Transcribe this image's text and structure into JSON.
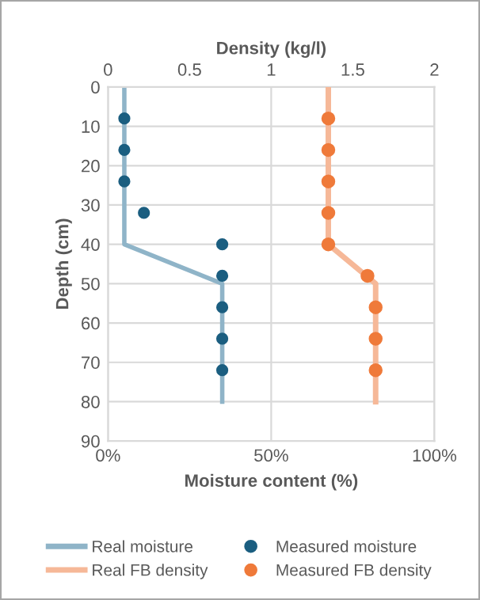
{
  "chart_data": {
    "type": "line",
    "xlabel": "Moisture content (%)",
    "x2label": "Density (kg/l)",
    "ylabel": "Depth (cm)",
    "xlim": [
      0,
      100
    ],
    "xticks": [
      {
        "value": 0,
        "label": "0%"
      },
      {
        "value": 50,
        "label": "50%"
      },
      {
        "value": 100,
        "label": "100%"
      }
    ],
    "x2lim": [
      0,
      2
    ],
    "x2ticks": [
      0,
      0.5,
      1,
      1.5,
      2
    ],
    "ylim": [
      90,
      0
    ],
    "yticks": [
      0,
      10,
      20,
      30,
      40,
      50,
      60,
      70,
      80,
      90
    ],
    "grid": true,
    "legend": "bottom",
    "series": [
      {
        "name": "Real moisture",
        "color": "#8fb4c8",
        "x": [
          5,
          5,
          35,
          35
        ],
        "values": [
          0,
          40,
          50,
          80
        ]
      },
      {
        "name": "Measured moisture",
        "type": "scatter",
        "marker": "circle",
        "color": "#1b5e80",
        "x": [
          5,
          5,
          5,
          11,
          35,
          35,
          35,
          35,
          35
        ],
        "values": [
          8,
          16,
          24,
          32,
          40,
          48,
          56,
          64,
          72
        ]
      },
      {
        "name": "Real FB density",
        "axis": "x2",
        "color": "#f6b898",
        "x": [
          1.35,
          1.35,
          1.64,
          1.64
        ],
        "values": [
          0,
          40,
          50,
          80
        ]
      },
      {
        "name": "Measured FB density",
        "type": "scatter",
        "axis": "x2",
        "marker": "circle",
        "color": "#ef7a3a",
        "x": [
          1.35,
          1.35,
          1.35,
          1.35,
          1.35,
          1.59,
          1.64,
          1.64,
          1.64
        ],
        "values": [
          8,
          16,
          24,
          32,
          40,
          48,
          56,
          64,
          72
        ]
      }
    ]
  }
}
